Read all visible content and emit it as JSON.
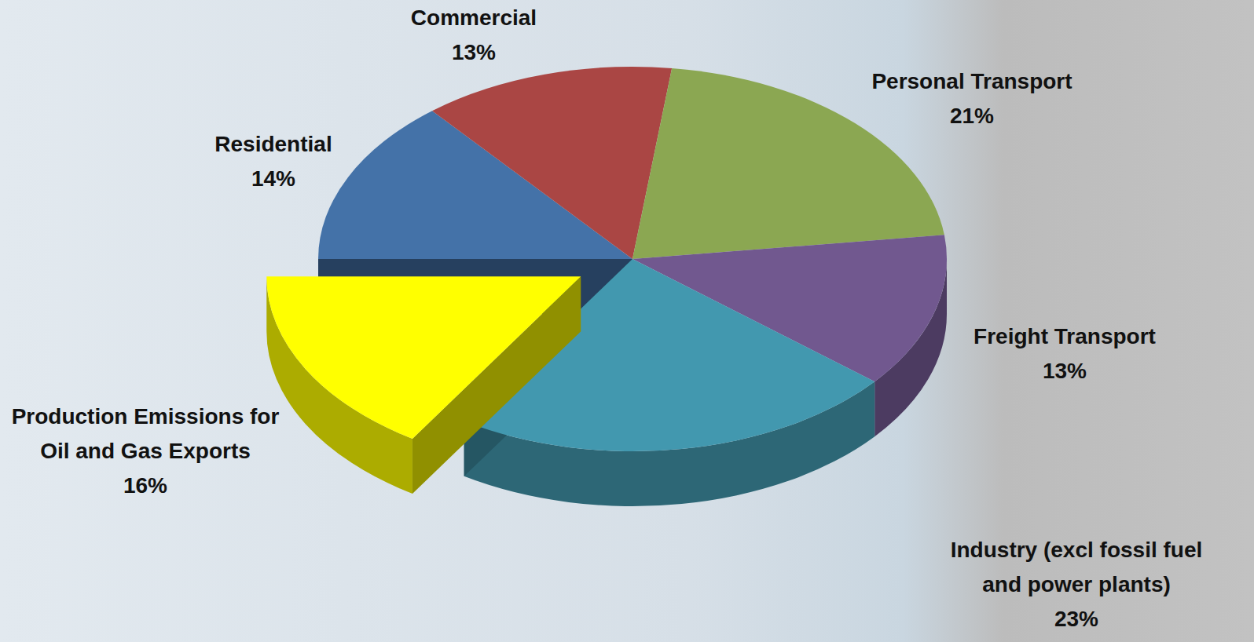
{
  "chart_data": {
    "type": "pie",
    "categories": [
      "Residential",
      "Commercial",
      "Personal Transport",
      "Freight Transport",
      "Industry (excl fossil fuel and power plants)",
      "Production Emissions for Oil and Gas Exports"
    ],
    "values": [
      14,
      13,
      21,
      13,
      23,
      16
    ],
    "value_labels": [
      "14%",
      "13%",
      "21%",
      "13%",
      "23%",
      "16%"
    ],
    "colors": [
      "#4472a8",
      "#aa4644",
      "#8ba752",
      "#71588f",
      "#4298af",
      "#ffff00"
    ],
    "data_labels": true
  }
}
